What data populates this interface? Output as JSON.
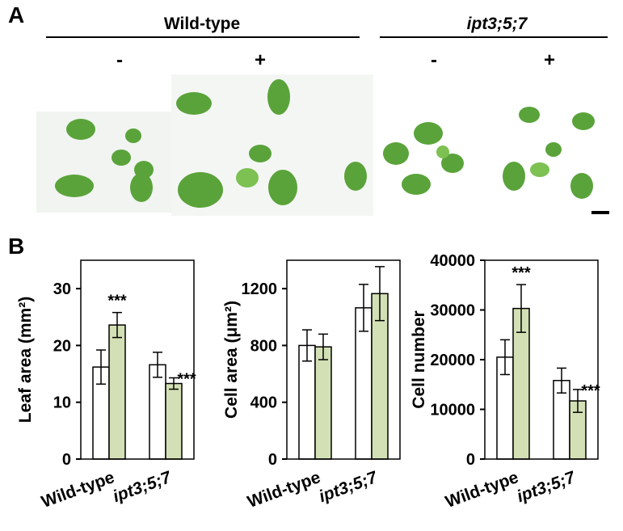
{
  "panel_a": {
    "label": "A",
    "groups": [
      "Wild-type",
      "ipt3;5;7"
    ],
    "treatments": [
      "-",
      "+",
      "-",
      "+"
    ]
  },
  "panel_b": {
    "label": "B"
  },
  "chart_data": [
    {
      "type": "bar",
      "y_label": "Leaf  area (mm²)",
      "categories": [
        "Wild-type",
        "ipt3;5;7"
      ],
      "series": [
        {
          "color": "#ffffff",
          "values": [
            16.2,
            16.6
          ],
          "errors": [
            3.0,
            2.2
          ]
        },
        {
          "color": "#d3e0b5",
          "values": [
            23.6,
            13.3
          ],
          "errors": [
            2.2,
            1.0
          ]
        }
      ],
      "ylim": [
        0,
        35
      ],
      "yticks": [
        0,
        10,
        20,
        30
      ],
      "annotations": [
        {
          "text": "***",
          "series": 1,
          "category": 0
        },
        {
          "text": "***",
          "series": 1,
          "category": 1
        }
      ]
    },
    {
      "type": "bar",
      "y_label": "Cell area (μm²)",
      "categories": [
        "Wild-type",
        "ipt3;5;7"
      ],
      "series": [
        {
          "color": "#ffffff",
          "values": [
            800,
            1065
          ],
          "errors": [
            110,
            165
          ]
        },
        {
          "color": "#d3e0b5",
          "values": [
            790,
            1165
          ],
          "errors": [
            90,
            190
          ]
        }
      ],
      "ylim": [
        0,
        1400
      ],
      "yticks": [
        0,
        400,
        800,
        1200
      ],
      "annotations": []
    },
    {
      "type": "bar",
      "y_label": "Cell number",
      "categories": [
        "Wild-type",
        "ipt3;5;7"
      ],
      "series": [
        {
          "color": "#ffffff",
          "values": [
            20500,
            15800
          ],
          "errors": [
            3500,
            2500
          ]
        },
        {
          "color": "#d3e0b5",
          "values": [
            30300,
            11700
          ],
          "errors": [
            4800,
            2300
          ]
        }
      ],
      "ylim": [
        0,
        40000
      ],
      "yticks": [
        0,
        10000,
        20000,
        30000,
        40000
      ],
      "annotations": [
        {
          "text": "***",
          "series": 1,
          "category": 0
        },
        {
          "text": "***",
          "series": 1,
          "category": 1
        }
      ]
    }
  ]
}
